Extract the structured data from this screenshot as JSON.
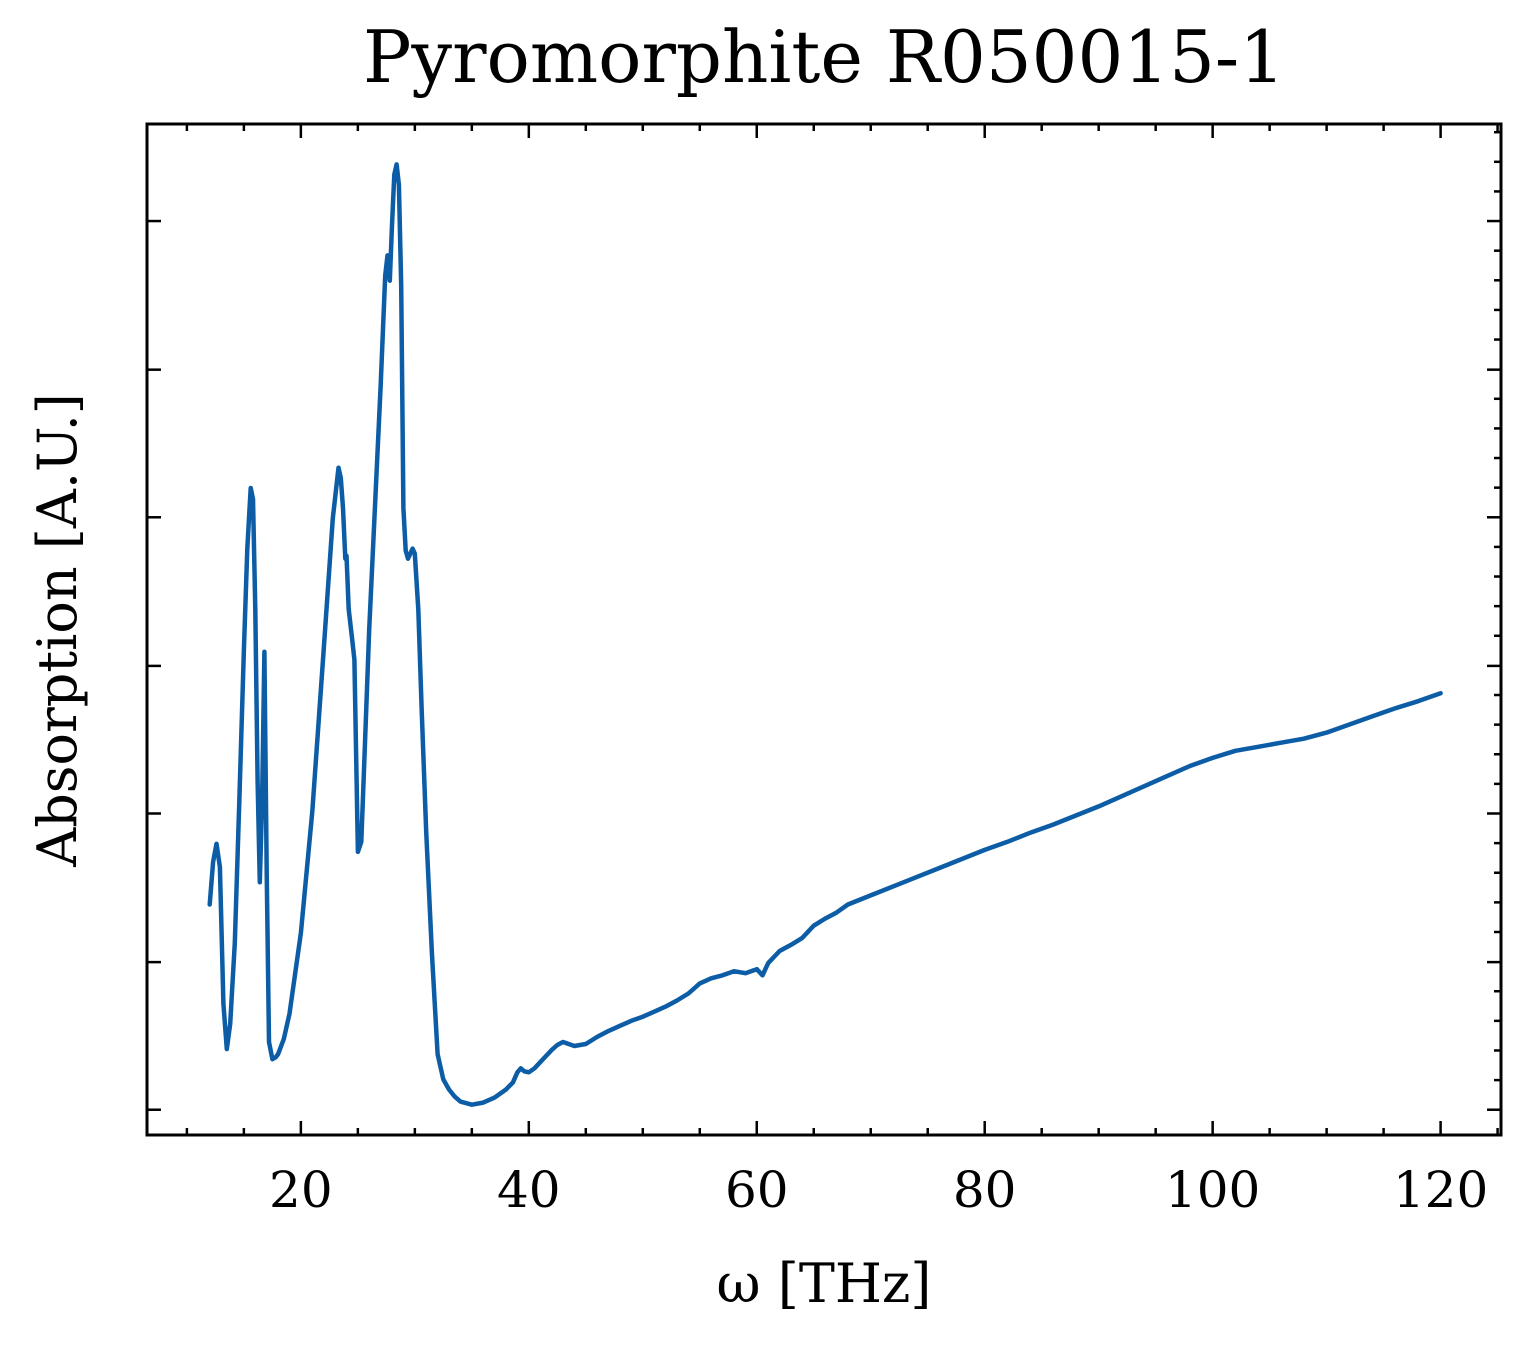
{
  "chart_data": {
    "type": "line",
    "title": "Pyromorphite R050015-1",
    "xlabel": "ω [THz]",
    "ylabel": "Absorption [A.U.]",
    "xlim": [
      6.5,
      125.3
    ],
    "ylim": [
      0.0,
      1.0
    ],
    "xticks": [
      20,
      40,
      60,
      80,
      100,
      120
    ],
    "xtick_labels": [
      "20",
      "40",
      "60",
      "80",
      "100",
      "120"
    ],
    "xminor_step": 5,
    "yticks": [
      0.025,
      0.171,
      0.318,
      0.464,
      0.611,
      0.757,
      0.904
    ],
    "yminor_step": 0.0293,
    "ytick_labels_visible": false,
    "grid": false,
    "legend": "none",
    "colors": {
      "series": "#0C5DA5",
      "axes": "#000000"
    },
    "series": [
      {
        "color": "#0C5DA5",
        "x": [
          12.0,
          12.3,
          12.6,
          12.9,
          13.2,
          13.5,
          13.8,
          14.2,
          14.6,
          15.0,
          15.3,
          15.6,
          15.8,
          16.0,
          16.2,
          16.4,
          16.6,
          16.8,
          17.0,
          17.2,
          17.5,
          17.8,
          18.0,
          18.5,
          19.0,
          20.0,
          21.0,
          22.0,
          22.8,
          23.3,
          23.5,
          23.7,
          23.9,
          24.0,
          24.2,
          24.5,
          24.7,
          25.0,
          25.3,
          25.6,
          26.0,
          26.5,
          27.0,
          27.4,
          27.6,
          27.8,
          28.0,
          28.2,
          28.4,
          28.6,
          28.8,
          29.0,
          29.2,
          29.4,
          29.6,
          29.8,
          30.0,
          30.3,
          30.6,
          31.0,
          31.5,
          32.0,
          32.5,
          33.0,
          33.5,
          34.0,
          35.0,
          36.0,
          37.0,
          38.0,
          38.6,
          39.0,
          39.3,
          39.6,
          40.0,
          40.5,
          41.0,
          41.5,
          42.0,
          42.5,
          43.0,
          44.0,
          45.0,
          46.0,
          47.0,
          48.0,
          49.0,
          50.0,
          51.0,
          52.0,
          53.0,
          54.0,
          55.0,
          56.0,
          57.0,
          58.0,
          59.0,
          60.0,
          60.5,
          61.0,
          62.0,
          63.0,
          64.0,
          65.0,
          66.0,
          67.0,
          68.0,
          70.0,
          72.0,
          74.0,
          76.0,
          78.0,
          80.0,
          82.0,
          84.0,
          86.0,
          88.0,
          90.0,
          92.0,
          94.0,
          96.0,
          98.0,
          100.0,
          102.0,
          104.0,
          106.0,
          108.0,
          110.0,
          112.0,
          114.0,
          116.0,
          118.0,
          120.0
        ],
        "y": [
          0.228,
          0.27,
          0.288,
          0.265,
          0.13,
          0.085,
          0.11,
          0.19,
          0.33,
          0.48,
          0.58,
          0.64,
          0.629,
          0.52,
          0.35,
          0.25,
          0.33,
          0.478,
          0.26,
          0.092,
          0.075,
          0.077,
          0.08,
          0.095,
          0.12,
          0.2,
          0.32,
          0.48,
          0.61,
          0.66,
          0.65,
          0.62,
          0.57,
          0.573,
          0.52,
          0.49,
          0.47,
          0.28,
          0.29,
          0.38,
          0.5,
          0.62,
          0.74,
          0.85,
          0.87,
          0.845,
          0.9,
          0.95,
          0.96,
          0.94,
          0.84,
          0.62,
          0.578,
          0.57,
          0.575,
          0.58,
          0.575,
          0.52,
          0.42,
          0.3,
          0.18,
          0.08,
          0.055,
          0.045,
          0.038,
          0.033,
          0.03,
          0.032,
          0.037,
          0.045,
          0.052,
          0.062,
          0.066,
          0.063,
          0.062,
          0.066,
          0.072,
          0.078,
          0.084,
          0.089,
          0.092,
          0.088,
          0.09,
          0.097,
          0.103,
          0.108,
          0.113,
          0.117,
          0.122,
          0.127,
          0.133,
          0.14,
          0.15,
          0.155,
          0.158,
          0.162,
          0.16,
          0.164,
          0.158,
          0.17,
          0.182,
          0.188,
          0.195,
          0.207,
          0.214,
          0.22,
          0.228,
          0.237,
          0.246,
          0.255,
          0.264,
          0.273,
          0.282,
          0.29,
          0.299,
          0.307,
          0.316,
          0.325,
          0.335,
          0.345,
          0.355,
          0.365,
          0.373,
          0.38,
          0.384,
          0.388,
          0.392,
          0.398,
          0.406,
          0.414,
          0.422,
          0.429,
          0.437
        ]
      }
    ]
  }
}
